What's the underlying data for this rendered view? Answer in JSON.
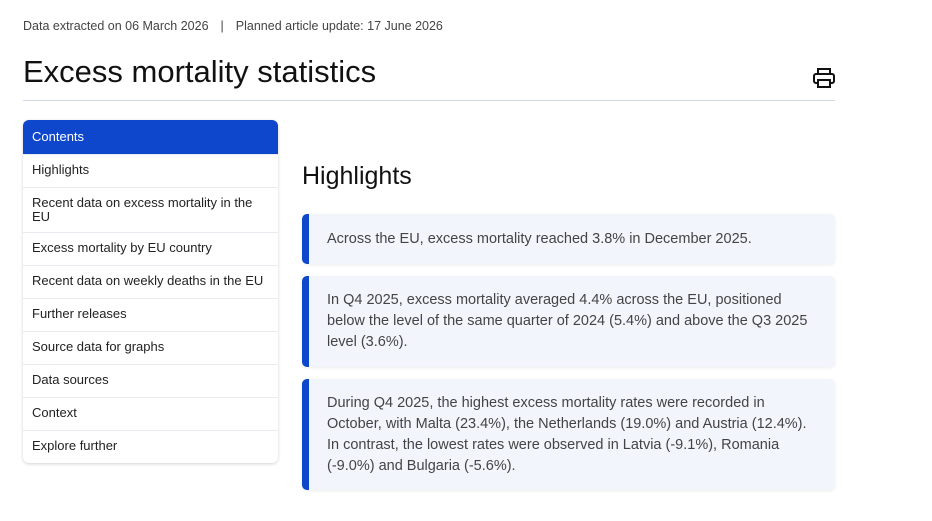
{
  "meta": {
    "extracted": "Data extracted on 06 March 2026",
    "separator": "|",
    "planned": "Planned article update: 17 June 2026"
  },
  "title": "Excess mortality statistics",
  "toc": {
    "header": "Contents",
    "items": [
      "Highlights",
      "Recent data on excess mortality in the EU",
      "Excess mortality by EU country",
      "Recent data on weekly deaths in the EU",
      "Further releases",
      "Source data for graphs",
      "Data sources",
      "Context",
      "Explore further"
    ]
  },
  "section_title": "Highlights",
  "highlights": [
    "Across the EU, excess mortality reached 3.8% in December 2025.",
    "In Q4 2025, excess mortality averaged 4.4% across the EU, positioned below the level of the same quarter of 2024 (5.4%) and above the Q3 2025 level (3.6%).",
    "During Q4 2025, the highest excess mortality rates were recorded in October, with Malta (23.4%), the Netherlands (19.0%) and Austria (12.4%). In contrast, the lowest rates were observed in Latvia (-9.1%), Romania (-9.0%) and Bulgaria (-5.6%)."
  ],
  "colors": {
    "accent": "#0e47cb",
    "box_bg": "#f2f5fc"
  }
}
